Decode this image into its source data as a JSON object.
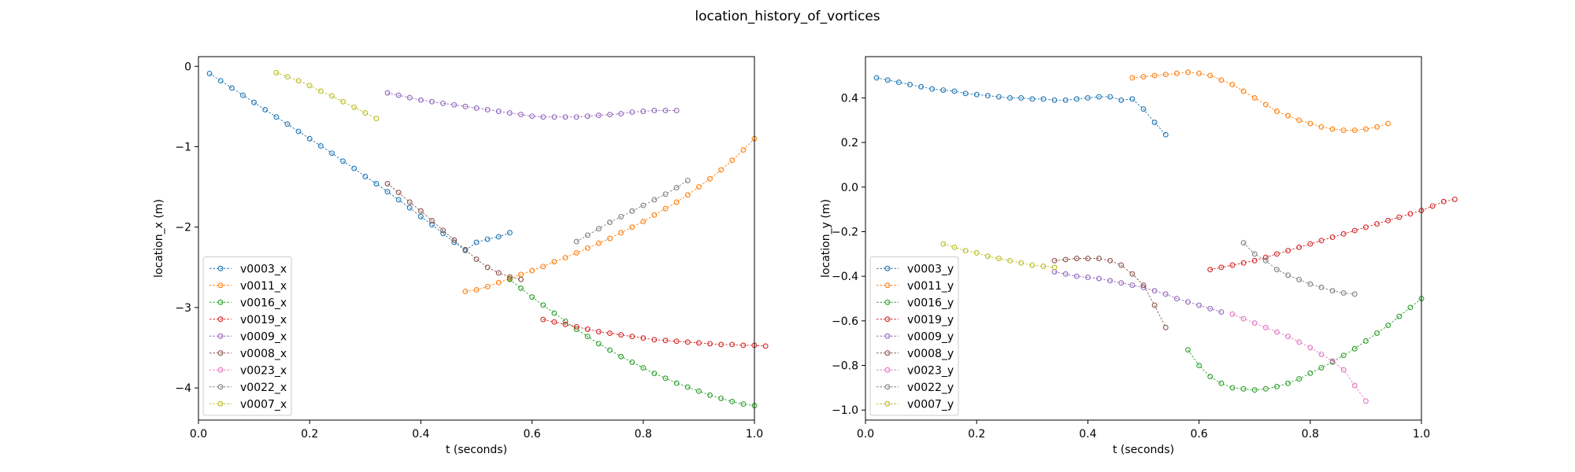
{
  "figure": {
    "suptitle": "location_history_of_vortices"
  },
  "colors": {
    "v0003": "#1f77b4",
    "v0011": "#ff7f0e",
    "v0016": "#2ca02c",
    "v0019": "#d62728",
    "v0009": "#9467bd",
    "v0008": "#8c564b",
    "v0023": "#e377c2",
    "v0022": "#7f7f7f",
    "v0007": "#bcbd22"
  },
  "chart_data": [
    {
      "type": "line",
      "id": "x",
      "xlabel": "t (seconds)",
      "ylabel": "location_x (m)",
      "xlim": [
        0,
        1
      ],
      "ylim": [
        -4.4,
        0.12
      ],
      "xticks": [
        0,
        0.2,
        0.4,
        0.6,
        0.8,
        1
      ],
      "xtick_labels": [
        "0.0",
        "0.2",
        "0.4",
        "0.6",
        "0.8",
        "1.0"
      ],
      "yticks": [
        0,
        -1,
        -2,
        -3,
        -4
      ],
      "ytick_labels": [
        "0",
        "−1",
        "−2",
        "−3",
        "−4"
      ],
      "legend_loc": "lower left",
      "grid": false,
      "series": [
        {
          "name": "v0003_x",
          "key": "v0003",
          "t0": 0.02,
          "values": [
            -0.09,
            -0.18,
            -0.27,
            -0.36,
            -0.45,
            -0.54,
            -0.63,
            -0.72,
            -0.81,
            -0.9,
            -0.99,
            -1.08,
            -1.18,
            -1.27,
            -1.37,
            -1.46,
            -1.56,
            -1.66,
            -1.76,
            -1.87,
            -1.97,
            -2.08,
            -2.19,
            -2.29,
            -2.19,
            -2.15,
            -2.12,
            -2.07
          ]
        },
        {
          "name": "v0011_x",
          "key": "v0011",
          "t0": 0.48,
          "values": [
            -2.8,
            -2.78,
            -2.74,
            -2.69,
            -2.64,
            -2.59,
            -2.54,
            -2.49,
            -2.43,
            -2.38,
            -2.32,
            -2.26,
            -2.2,
            -2.14,
            -2.07,
            -2.0,
            -1.93,
            -1.85,
            -1.77,
            -1.69,
            -1.6,
            -1.5,
            -1.4,
            -1.29,
            -1.17,
            -1.04,
            -0.9
          ]
        },
        {
          "name": "v0016_x",
          "key": "v0016",
          "t0": 0.56,
          "values": [
            -2.65,
            -2.76,
            -2.87,
            -2.97,
            -3.07,
            -3.17,
            -3.27,
            -3.36,
            -3.45,
            -3.53,
            -3.61,
            -3.68,
            -3.75,
            -3.82,
            -3.88,
            -3.94,
            -3.99,
            -4.04,
            -4.09,
            -4.13,
            -4.17,
            -4.2,
            -4.22
          ]
        },
        {
          "name": "v0019_x",
          "key": "v0019",
          "t0": 0.62,
          "values": [
            -3.15,
            -3.18,
            -3.21,
            -3.24,
            -3.27,
            -3.3,
            -3.32,
            -3.34,
            -3.36,
            -3.38,
            -3.4,
            -3.41,
            -3.42,
            -3.43,
            -3.44,
            -3.45,
            -3.46,
            -3.46,
            -3.47,
            -3.47,
            -3.48
          ]
        },
        {
          "name": "v0009_x",
          "key": "v0009",
          "t0": 0.34,
          "values": [
            -0.33,
            -0.36,
            -0.39,
            -0.42,
            -0.44,
            -0.46,
            -0.48,
            -0.5,
            -0.52,
            -0.54,
            -0.56,
            -0.58,
            -0.6,
            -0.62,
            -0.63,
            -0.63,
            -0.63,
            -0.63,
            -0.62,
            -0.61,
            -0.6,
            -0.59,
            -0.57,
            -0.56,
            -0.55,
            -0.55,
            -0.55
          ]
        },
        {
          "name": "v0008_x",
          "key": "v0008",
          "t0": 0.34,
          "values": [
            -1.46,
            -1.57,
            -1.69,
            -1.8,
            -1.92,
            -2.04,
            -2.16,
            -2.28,
            -2.4,
            -2.5,
            -2.57,
            -2.62,
            -2.65
          ]
        },
        {
          "name": "v0023_x",
          "key": "v0023",
          "t0": null,
          "values": []
        },
        {
          "name": "v0022_x",
          "key": "v0022",
          "t0": 0.68,
          "values": [
            -2.18,
            -2.1,
            -2.02,
            -1.94,
            -1.87,
            -1.8,
            -1.73,
            -1.66,
            -1.59,
            -1.51,
            -1.42
          ]
        },
        {
          "name": "v0007_x",
          "key": "v0007",
          "t0": 0.14,
          "values": [
            -0.08,
            -0.13,
            -0.18,
            -0.24,
            -0.31,
            -0.37,
            -0.44,
            -0.51,
            -0.58,
            -0.65
          ]
        }
      ]
    },
    {
      "type": "line",
      "id": "y",
      "xlabel": "t (seconds)",
      "ylabel": "location_y (m)",
      "xlim": [
        0,
        1
      ],
      "ylim": [
        -1.045,
        0.585
      ],
      "xticks": [
        0,
        0.2,
        0.4,
        0.6,
        0.8,
        1
      ],
      "xtick_labels": [
        "0.0",
        "0.2",
        "0.4",
        "0.6",
        "0.8",
        "1.0"
      ],
      "yticks": [
        0.4,
        0.2,
        0.0,
        -0.2,
        -0.4,
        -0.6,
        -0.8,
        -1.0
      ],
      "ytick_labels": [
        "0.4",
        "0.2",
        "0.0",
        "−0.2",
        "−0.4",
        "−0.6",
        "−0.8",
        "−1.0"
      ],
      "legend_loc": "lower left",
      "grid": false,
      "series": [
        {
          "name": "v0003_y",
          "key": "v0003",
          "t0": 0.02,
          "values": [
            0.49,
            0.48,
            0.47,
            0.46,
            0.45,
            0.44,
            0.435,
            0.43,
            0.42,
            0.415,
            0.41,
            0.405,
            0.4,
            0.4,
            0.395,
            0.395,
            0.39,
            0.39,
            0.395,
            0.4,
            0.405,
            0.405,
            0.39,
            0.395,
            0.35,
            0.29,
            0.235
          ]
        },
        {
          "name": "v0011_y",
          "key": "v0011",
          "t0": 0.48,
          "values": [
            0.49,
            0.495,
            0.5,
            0.505,
            0.51,
            0.515,
            0.51,
            0.5,
            0.48,
            0.46,
            0.43,
            0.4,
            0.37,
            0.34,
            0.32,
            0.3,
            0.285,
            0.27,
            0.26,
            0.255,
            0.255,
            0.26,
            0.27,
            0.285
          ]
        },
        {
          "name": "v0016_y",
          "key": "v0016",
          "t0": 0.58,
          "values": [
            -0.73,
            -0.8,
            -0.85,
            -0.88,
            -0.9,
            -0.905,
            -0.91,
            -0.905,
            -0.895,
            -0.88,
            -0.86,
            -0.835,
            -0.81,
            -0.785,
            -0.755,
            -0.725,
            -0.69,
            -0.655,
            -0.62,
            -0.58,
            -0.54,
            -0.5
          ]
        },
        {
          "name": "v0019_y",
          "key": "v0019",
          "t0": 0.62,
          "values": [
            -0.37,
            -0.36,
            -0.35,
            -0.34,
            -0.33,
            -0.315,
            -0.3,
            -0.285,
            -0.27,
            -0.255,
            -0.24,
            -0.225,
            -0.21,
            -0.195,
            -0.18,
            -0.165,
            -0.15,
            -0.135,
            -0.12,
            -0.105,
            -0.085,
            -0.065,
            -0.055
          ]
        },
        {
          "name": "v0009_y",
          "key": "v0009",
          "t0": 0.34,
          "values": [
            -0.38,
            -0.39,
            -0.4,
            -0.405,
            -0.41,
            -0.42,
            -0.43,
            -0.44,
            -0.45,
            -0.465,
            -0.48,
            -0.5,
            -0.515,
            -0.53,
            -0.545,
            -0.56
          ]
        },
        {
          "name": "v0008_y",
          "key": "v0008",
          "t0": 0.34,
          "values": [
            -0.33,
            -0.325,
            -0.32,
            -0.32,
            -0.32,
            -0.33,
            -0.35,
            -0.39,
            -0.44,
            -0.53,
            -0.63
          ]
        },
        {
          "name": "v0023_y",
          "key": "v0023",
          "t0": 0.66,
          "values": [
            -0.57,
            -0.59,
            -0.61,
            -0.63,
            -0.65,
            -0.67,
            -0.695,
            -0.72,
            -0.75,
            -0.78,
            -0.82,
            -0.89,
            -0.96
          ]
        },
        {
          "name": "v0022_y",
          "key": "v0022",
          "t0": 0.68,
          "values": [
            -0.25,
            -0.3,
            -0.33,
            -0.37,
            -0.395,
            -0.415,
            -0.435,
            -0.45,
            -0.465,
            -0.475,
            -0.48
          ]
        },
        {
          "name": "v0007_y",
          "key": "v0007",
          "t0": 0.14,
          "values": [
            -0.255,
            -0.27,
            -0.285,
            -0.295,
            -0.31,
            -0.32,
            -0.33,
            -0.34,
            -0.35,
            -0.355,
            -0.36
          ]
        }
      ]
    }
  ]
}
